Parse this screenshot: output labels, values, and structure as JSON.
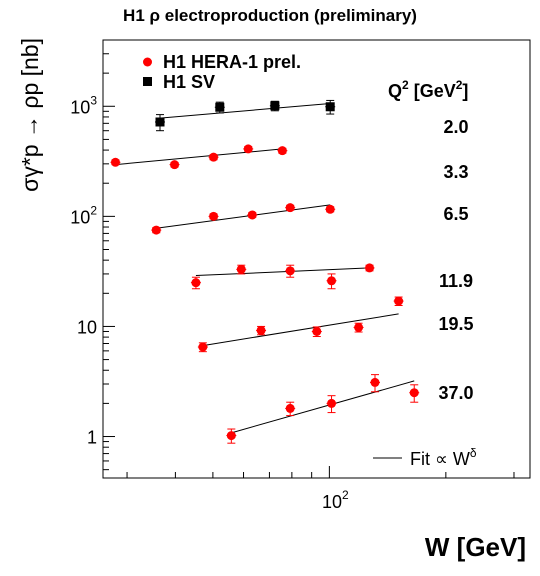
{
  "title": "H1 ρ electroproduction (preliminary)",
  "chart_data": {
    "type": "scatter",
    "xlabel": "W [GeV]",
    "ylabel": "σγ*p → ρp [nb]",
    "xscale": "log",
    "yscale": "log",
    "xlim": [
      26,
      330
    ],
    "ylim": [
      0.42,
      4000
    ],
    "x_tick_labels": [
      {
        "value": 100,
        "base": "10",
        "exp": "2"
      }
    ],
    "y_tick_labels": [
      {
        "value": 1,
        "base": "1",
        "exp": ""
      },
      {
        "value": 10,
        "base": "10",
        "exp": ""
      },
      {
        "value": 100,
        "base": "10",
        "exp": "2"
      },
      {
        "value": 1000,
        "base": "10",
        "exp": "3"
      }
    ],
    "q2_header": {
      "prefix": "Q",
      "sup": "2",
      "mid": " [GeV",
      "sup2": "2",
      "suffix": "]"
    },
    "legend": {
      "placement": "top-left",
      "entries": [
        {
          "label": "H1 HERA-1 prel.",
          "marker": "circle",
          "color": "#ff0000"
        },
        {
          "label": "H1 SV",
          "marker": "square",
          "color": "#000000"
        }
      ]
    },
    "fit_legend": {
      "prefix": "Fit ∝ W",
      "sup": "δ",
      "placement": "bottom-right"
    },
    "series": [
      {
        "q2": "2.0",
        "marker": "square",
        "color": "#000000",
        "x": [
          36.5,
          52.1,
          72.3,
          100.5
        ],
        "y": [
          720,
          980,
          1010,
          990
        ],
        "err": [
          120,
          110,
          100,
          140
        ],
        "fit": {
          "x": [
            36.5,
            100.5
          ],
          "y": [
            780,
            1060
          ]
        }
      },
      {
        "q2": "3.3",
        "marker": "circle",
        "color": "#ff0000",
        "x": [
          28.0,
          39.8,
          50.2,
          61.7,
          75.6
        ],
        "y": [
          310,
          295,
          345,
          410,
          395
        ],
        "err": [
          15,
          14,
          18,
          20,
          20
        ],
        "fit": {
          "x": [
            28.0,
            75.6
          ],
          "y": [
            295,
            410
          ]
        }
      },
      {
        "q2": "6.5",
        "marker": "circle",
        "color": "#ff0000",
        "x": [
          35.7,
          50.2,
          63.2,
          79.2,
          100.5
        ],
        "y": [
          75,
          100,
          103,
          120,
          116
        ],
        "err": [
          4,
          5,
          5,
          6,
          6
        ],
        "fit": {
          "x": [
            35.7,
            100.5
          ],
          "y": [
            78,
            127
          ]
        }
      },
      {
        "q2": "11.9",
        "marker": "circle",
        "color": "#ff0000",
        "x": [
          45.2,
          59.2,
          79.2,
          101.3,
          127.0
        ],
        "y": [
          25,
          33,
          32,
          26,
          34
        ],
        "err": [
          3,
          3,
          4,
          4,
          2
        ],
        "fit": {
          "x": [
            45.2,
            127.0
          ],
          "y": [
            29,
            34
          ]
        }
      },
      {
        "q2": "19.5",
        "marker": "circle",
        "color": "#ff0000",
        "x": [
          47.1,
          66.6,
          92.8,
          119.0,
          151.0
        ],
        "y": [
          6.5,
          9.2,
          9.0,
          9.8,
          17
        ],
        "err": [
          0.6,
          0.8,
          0.9,
          0.9,
          1.5
        ],
        "fit": {
          "x": [
            47.1,
            151.0
          ],
          "y": [
            6.7,
            13
          ]
        }
      },
      {
        "q2": "37.0",
        "marker": "circle",
        "color": "#ff0000",
        "x": [
          55.8,
          79.2,
          101.3,
          131.2,
          165.7
        ],
        "y": [
          1.02,
          1.8,
          2.0,
          3.1,
          2.5
        ],
        "err": [
          0.15,
          0.25,
          0.35,
          0.55,
          0.45
        ],
        "fit": {
          "x": [
            55.8,
            165.7
          ],
          "y": [
            1.08,
            3.2
          ]
        }
      }
    ]
  }
}
